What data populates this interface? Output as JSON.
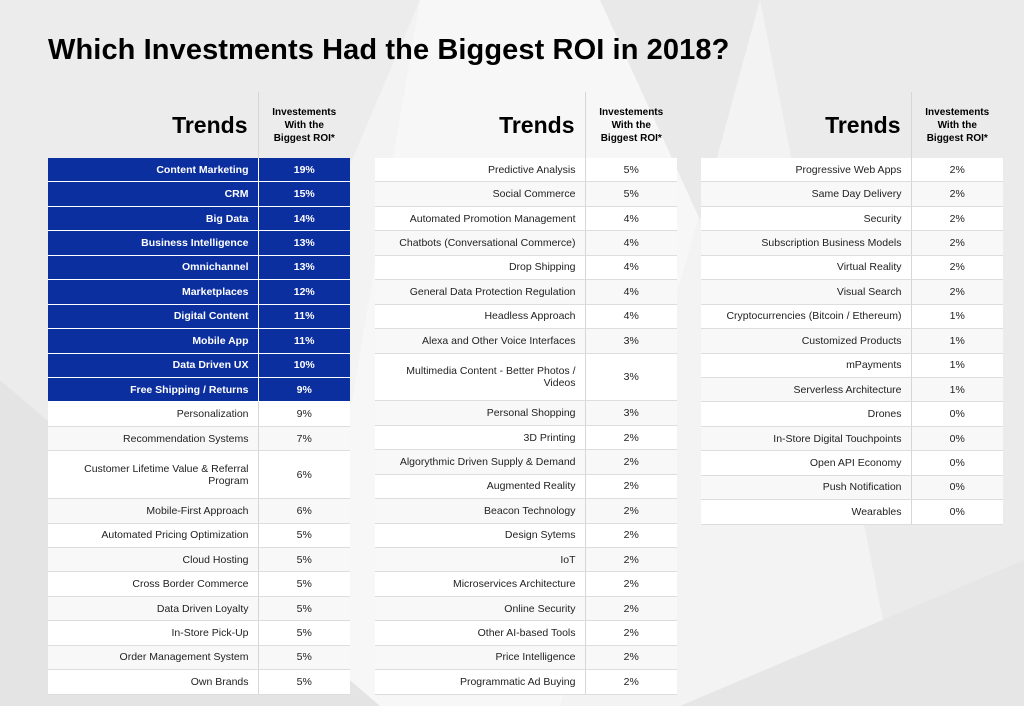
{
  "title": "Which Investments Had the Biggest ROI in 2018?",
  "colors": {
    "highlight": "#0b2f9f",
    "title": "#000000"
  },
  "chart_data": {
    "type": "table",
    "title": "Which Investments Had the Biggest ROI in 2018?",
    "columns": [
      "Trends",
      "Investements With the Biggest ROI*"
    ],
    "tables": [
      {
        "header": {
          "trends": "Trends",
          "roi_line1": "Investements",
          "roi_line2": "With the",
          "roi_line3": "Biggest ROI*"
        },
        "rows": [
          {
            "name": "Content Marketing",
            "value": "19%",
            "highlighted": true
          },
          {
            "name": "CRM",
            "value": "15%",
            "highlighted": true
          },
          {
            "name": "Big Data",
            "value": "14%",
            "highlighted": true
          },
          {
            "name": "Business Intelligence",
            "value": "13%",
            "highlighted": true
          },
          {
            "name": "Omnichannel",
            "value": "13%",
            "highlighted": true
          },
          {
            "name": "Marketplaces",
            "value": "12%",
            "highlighted": true
          },
          {
            "name": "Digital Content",
            "value": "11%",
            "highlighted": true
          },
          {
            "name": "Mobile App",
            "value": "11%",
            "highlighted": true
          },
          {
            "name": "Data Driven UX",
            "value": "10%",
            "highlighted": true
          },
          {
            "name": "Free Shipping / Returns",
            "value": "9%",
            "highlighted": true
          },
          {
            "name": "Personalization",
            "value": "9%"
          },
          {
            "name": "Recommendation Systems",
            "value": "7%"
          },
          {
            "name": "Customer Lifetime Value & Referral Program",
            "value": "6%",
            "tall": true
          },
          {
            "name": "Mobile-First Approach",
            "value": "6%"
          },
          {
            "name": "Automated Pricing Optimization",
            "value": "5%"
          },
          {
            "name": "Cloud Hosting",
            "value": "5%"
          },
          {
            "name": "Cross Border Commerce",
            "value": "5%"
          },
          {
            "name": "Data Driven Loyalty",
            "value": "5%"
          },
          {
            "name": "In-Store Pick-Up",
            "value": "5%"
          },
          {
            "name": "Order Management System",
            "value": "5%"
          },
          {
            "name": "Own Brands",
            "value": "5%"
          }
        ]
      },
      {
        "header": {
          "trends": "Trends",
          "roi_line1": "Investements",
          "roi_line2": "With the",
          "roi_line3": "Biggest ROI*"
        },
        "rows": [
          {
            "name": "Predictive Analysis",
            "value": "5%"
          },
          {
            "name": "Social Commerce",
            "value": "5%"
          },
          {
            "name": "Automated Promotion Management",
            "value": "4%"
          },
          {
            "name": "Chatbots (Conversational Commerce)",
            "value": "4%"
          },
          {
            "name": "Drop Shipping",
            "value": "4%"
          },
          {
            "name": "General Data Protection Regulation",
            "value": "4%"
          },
          {
            "name": "Headless Approach",
            "value": "4%"
          },
          {
            "name": "Alexa and Other Voice Interfaces",
            "value": "3%"
          },
          {
            "name": "Multimedia Content - Better Photos / Videos",
            "value": "3%",
            "tall": true
          },
          {
            "name": "Personal Shopping",
            "value": "3%"
          },
          {
            "name": "3D Printing",
            "value": "2%"
          },
          {
            "name": "Algorythmic Driven Supply & Demand",
            "value": "2%"
          },
          {
            "name": "Augmented Reality",
            "value": "2%"
          },
          {
            "name": "Beacon Technology",
            "value": "2%"
          },
          {
            "name": "Design Sytems",
            "value": "2%"
          },
          {
            "name": "IoT",
            "value": "2%"
          },
          {
            "name": "Microservices Architecture",
            "value": "2%"
          },
          {
            "name": "Online Security",
            "value": "2%"
          },
          {
            "name": "Other AI-based Tools",
            "value": "2%"
          },
          {
            "name": "Price Intelligence",
            "value": "2%"
          },
          {
            "name": "Programmatic Ad Buying",
            "value": "2%"
          }
        ]
      },
      {
        "header": {
          "trends": "Trends",
          "roi_line1": "Investements",
          "roi_line2": "With the",
          "roi_line3": "Biggest ROI*"
        },
        "rows": [
          {
            "name": "Progressive Web Apps",
            "value": "2%"
          },
          {
            "name": "Same Day Delivery",
            "value": "2%"
          },
          {
            "name": "Security",
            "value": "2%"
          },
          {
            "name": "Subscription Business Models",
            "value": "2%"
          },
          {
            "name": "Virtual Reality",
            "value": "2%"
          },
          {
            "name": "Visual Search",
            "value": "2%"
          },
          {
            "name": "Cryptocurrencies (Bitcoin / Ethereum)",
            "value": "1%"
          },
          {
            "name": "Customized Products",
            "value": "1%"
          },
          {
            "name": "mPayments",
            "value": "1%"
          },
          {
            "name": "Serverless Architecture",
            "value": "1%"
          },
          {
            "name": "Drones",
            "value": "0%"
          },
          {
            "name": "In-Store Digital Touchpoints",
            "value": "0%"
          },
          {
            "name": "Open API Economy",
            "value": "0%"
          },
          {
            "name": "Push Notification",
            "value": "0%"
          },
          {
            "name": "Wearables",
            "value": "0%"
          }
        ]
      }
    ]
  }
}
